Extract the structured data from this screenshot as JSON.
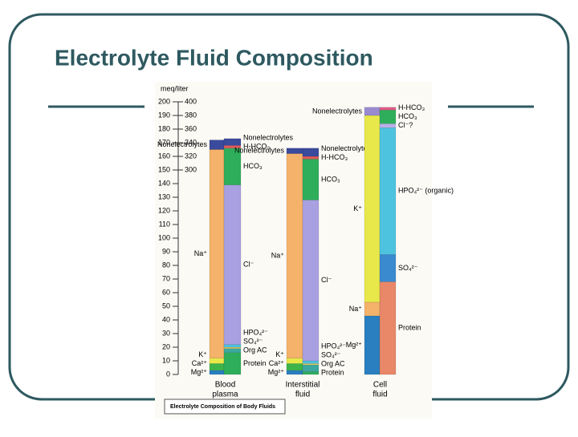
{
  "slide": {
    "title": "Electrolyte Fluid Composition"
  },
  "chart_data": {
    "type": "stacked_bar",
    "y_label": "meq/liter",
    "caption": "Electrolyte Composition of Body Fluids",
    "ylim": [
      0,
      200
    ],
    "yticks": [
      0,
      10,
      20,
      30,
      40,
      50,
      60,
      70,
      80,
      90,
      100,
      110,
      120,
      130,
      140,
      150,
      160,
      170,
      180,
      190,
      200
    ],
    "y2lim": [
      0,
      400
    ],
    "y2ticks": [
      300,
      320,
      340,
      360,
      380,
      400
    ],
    "groups": [
      {
        "name_lines": [
          "Blood",
          "plasma"
        ],
        "stacks": [
          {
            "label_side": "left",
            "segments": [
              {
                "name": "Mg²⁺",
                "color": "#2a7fc0",
                "value": 3
              },
              {
                "name": "Ca²⁺",
                "color": "#3cb44b",
                "value": 5
              },
              {
                "name": "K⁺",
                "color": "#e8e84a",
                "value": 4
              },
              {
                "name": "Na⁺",
                "color": "#f5b26a",
                "value": 153
              },
              {
                "name": "Nonelectrolytes",
                "color": "#3a4a9c",
                "value": 7
              }
            ]
          },
          {
            "label_side": "right",
            "segments": [
              {
                "name": "Protein",
                "color": "#2eae5a",
                "value": 16
              },
              {
                "name": "Org AC",
                "color": "#3aa8a0",
                "value": 3
              },
              {
                "name": "SO₄²⁻",
                "color": "#e0d060",
                "value": 1
              },
              {
                "name": "HPO₄²⁻",
                "color": "#4ec3e0",
                "value": 2
              },
              {
                "name": "Cl⁻",
                "color": "#a8a0e0",
                "value": 117
              },
              {
                "name": "HCO₃",
                "color": "#2eae5a",
                "value": 27
              },
              {
                "name": "H-HCO₃",
                "color": "#e05a5a",
                "value": 2
              },
              {
                "name": "Nonelectrolytes",
                "color": "#3a4a9c",
                "value": 5
              }
            ]
          }
        ]
      },
      {
        "name_lines": [
          "Interstitial",
          "fluid"
        ],
        "stacks": [
          {
            "label_side": "left",
            "segments": [
              {
                "name": "Mg²⁺",
                "color": "#2a7fc0",
                "value": 3
              },
              {
                "name": "Ca²⁺",
                "color": "#3cb44b",
                "value": 5
              },
              {
                "name": "K⁺",
                "color": "#e8e84a",
                "value": 4
              },
              {
                "name": "Na⁺",
                "color": "#f5b26a",
                "value": 150
              },
              {
                "name": "Nonelectrolytes",
                "color": "#3a4a9c",
                "value": 4
              }
            ]
          },
          {
            "label_side": "right",
            "segments": [
              {
                "name": "Protein",
                "color": "#2eae5a",
                "value": 2
              },
              {
                "name": "Org AC",
                "color": "#3aa8a0",
                "value": 5
              },
              {
                "name": "SO₄²⁻",
                "color": "#e0d060",
                "value": 1
              },
              {
                "name": "HPO₄²⁻",
                "color": "#4ec3e0",
                "value": 2
              },
              {
                "name": "Cl⁻",
                "color": "#a8a0e0",
                "value": 118
              },
              {
                "name": "HCO₃",
                "color": "#2eae5a",
                "value": 30
              },
              {
                "name": "H-HCO₃",
                "color": "#e05a5a",
                "value": 2
              },
              {
                "name": "Nonelectrolytes",
                "color": "#3a4a9c",
                "value": 6
              }
            ]
          }
        ]
      },
      {
        "name_lines": [
          "Cell",
          "fluid"
        ],
        "stacks": [
          {
            "label_side": "left",
            "segments": [
              {
                "name": "Mg²⁺",
                "color": "#2a7fc0",
                "value": 43
              },
              {
                "name": "Na⁺",
                "color": "#f5b26a",
                "value": 10
              },
              {
                "name": "K⁺",
                "color": "#e8e84a",
                "value": 137
              },
              {
                "name": "Nonelectrolytes",
                "color": "#9a8ad0",
                "value": 6
              }
            ]
          },
          {
            "label_side": "right",
            "segments": [
              {
                "name": "Protein",
                "color": "#e88868",
                "value": 68
              },
              {
                "name": "SO₄²⁻",
                "color": "#3a8ad0",
                "value": 20
              },
              {
                "name": "HPO₄²⁻ (organic)",
                "color": "#4ec3e0",
                "value": 93
              },
              {
                "name": "Cl⁻?",
                "color": "#b8b0e8",
                "value": 3
              },
              {
                "name": "HCO₃",
                "color": "#2eae5a",
                "value": 10
              },
              {
                "name": "H-HCO₃",
                "color": "#e05a8a",
                "value": 2
              }
            ]
          }
        ]
      }
    ]
  }
}
